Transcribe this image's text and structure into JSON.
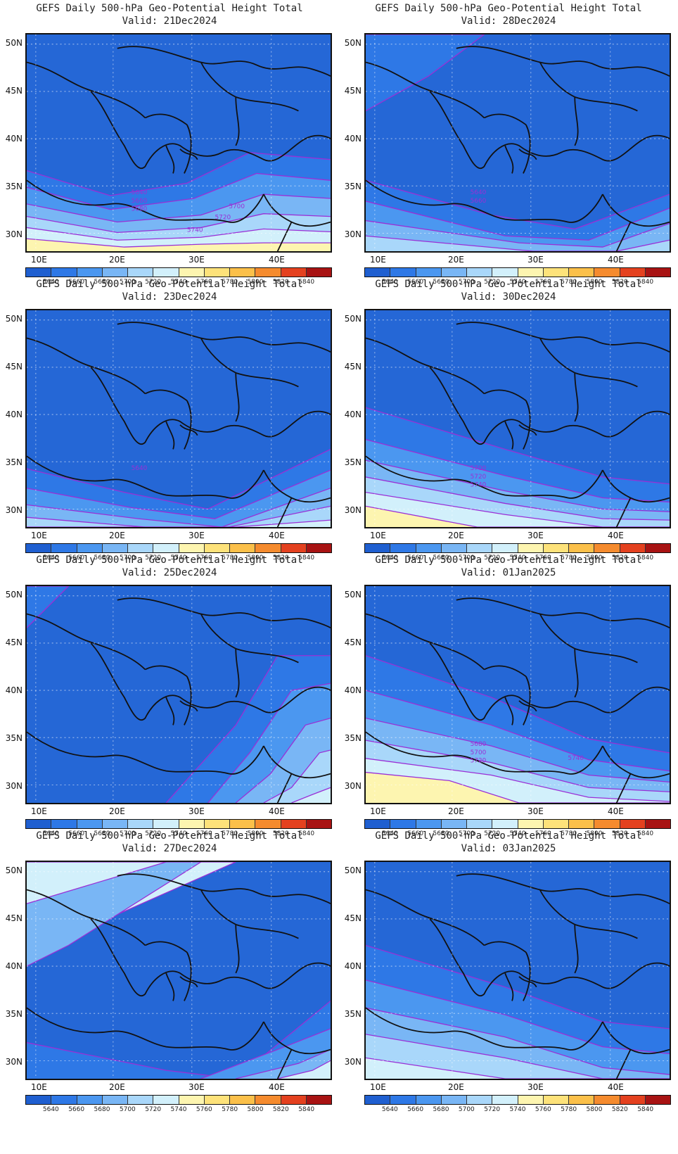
{
  "panels": [
    {
      "title": "GEFS Daily 500-hPa Geo-Potential Height Total",
      "valid": "Valid: 21Dec2024",
      "contour_labels": [
        "5640",
        "5660",
        "5680",
        "5700",
        "5720",
        "5740"
      ]
    },
    {
      "title": "GEFS Daily 500-hPa Geo-Potential Height Total",
      "valid": "Valid: 28Dec2024",
      "contour_labels": [
        "5640",
        "5660"
      ]
    },
    {
      "title": "GEFS Daily 500-hPa Geo-Potential Height Total",
      "valid": "Valid: 23Dec2024",
      "contour_labels": [
        "5640"
      ]
    },
    {
      "title": "GEFS Daily 500-hPa Geo-Potential Height Total",
      "valid": "Valid: 30Dec2024",
      "contour_labels": [
        "5700",
        "5720",
        "5740"
      ]
    },
    {
      "title": "GEFS Daily 500-hPa Geo-Potential Height Total",
      "valid": "Valid: 25Dec2024",
      "contour_labels": []
    },
    {
      "title": "GEFS Daily 500-hPa Geo-Potential Height Total",
      "valid": "Valid: 01Jan2025",
      "contour_labels": [
        "5680",
        "5700",
        "5720",
        "5740"
      ]
    },
    {
      "title": "GEFS Daily 500-hPa Geo-Potential Height Total",
      "valid": "Valid: 27Dec2024",
      "contour_labels": []
    },
    {
      "title": "GEFS Daily 500-hPa Geo-Potential Height Total",
      "valid": "Valid: 03Jan2025",
      "contour_labels": []
    }
  ],
  "axes": {
    "lat_labels": [
      "50N",
      "45N",
      "40N",
      "35N",
      "30N"
    ],
    "lon_labels": [
      "10E",
      "20E",
      "30E",
      "40E"
    ]
  },
  "colorbar": {
    "labels": [
      "5640",
      "5660",
      "5680",
      "5700",
      "5720",
      "5740",
      "5760",
      "5780",
      "5800",
      "5820",
      "5840"
    ],
    "colors": [
      "#1f5fd0",
      "#2e78e6",
      "#4b97f0",
      "#79b6f5",
      "#a9d7fa",
      "#d2f0fb",
      "#fdf5b0",
      "#fde27a",
      "#fbc04a",
      "#f58b2e",
      "#e4411f",
      "#a81313"
    ]
  },
  "styles": {
    "base_fill": "#2567d6",
    "contour_color": "#9a2fd6",
    "coast_color": "#111111"
  }
}
